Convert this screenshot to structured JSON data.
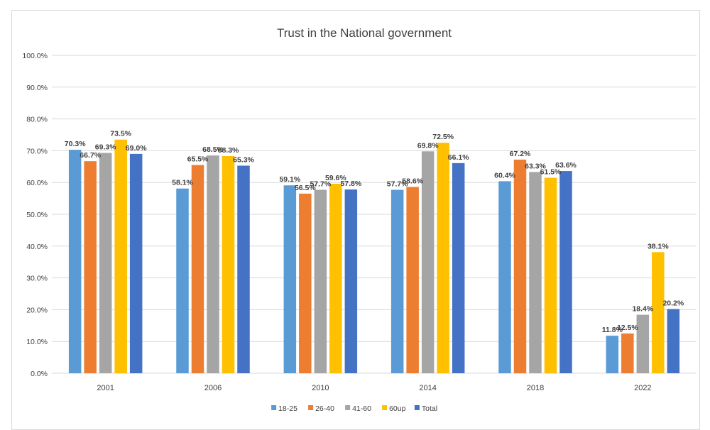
{
  "chart_data": {
    "type": "bar",
    "title": "Trust in the National government",
    "xlabel": "",
    "ylabel": "",
    "ylim": [
      0,
      100
    ],
    "y_ticks": [
      "0.0%",
      "10.0%",
      "20.0%",
      "30.0%",
      "40.0%",
      "50.0%",
      "60.0%",
      "70.0%",
      "80.0%",
      "90.0%",
      "100.0%"
    ],
    "y_tick_values": [
      0,
      10,
      20,
      30,
      40,
      50,
      60,
      70,
      80,
      90,
      100
    ],
    "grid": true,
    "legend_position": "bottom",
    "categories": [
      "2001",
      "2006",
      "2010",
      "2014",
      "2018",
      "2022"
    ],
    "series": [
      {
        "name": "18-25",
        "color": "#5B9BD5",
        "values": [
          70.3,
          58.1,
          59.1,
          57.7,
          60.4,
          11.8
        ],
        "labels": [
          "70.3%",
          "58.1%",
          "59.1%",
          "57.7%",
          "60.4%",
          "11.8%"
        ]
      },
      {
        "name": "26-40",
        "color": "#ED7D31",
        "values": [
          66.7,
          65.5,
          56.5,
          58.6,
          67.2,
          12.5
        ],
        "labels": [
          "66.7%",
          "65.5%",
          "56.5%",
          "58.6%",
          "67.2%",
          "12.5%"
        ]
      },
      {
        "name": "41-60",
        "color": "#A5A5A5",
        "values": [
          69.3,
          68.5,
          57.7,
          69.8,
          63.3,
          18.4
        ],
        "labels": [
          "69.3%",
          "68.5%",
          "57.7%",
          "69.8%",
          "63.3%",
          "18.4%"
        ]
      },
      {
        "name": "60up",
        "color": "#FFC000",
        "values": [
          73.5,
          68.3,
          59.6,
          72.5,
          61.5,
          38.1
        ],
        "labels": [
          "73.5%",
          "68.3%",
          "59.6%",
          "72.5%",
          "61.5%",
          "38.1%"
        ]
      },
      {
        "name": "Total",
        "color": "#4472C4",
        "values": [
          69.0,
          65.3,
          57.8,
          66.1,
          63.6,
          20.2
        ],
        "labels": [
          "69.0%",
          "65.3%",
          "57.8%",
          "66.1%",
          "63.6%",
          "20.2%"
        ]
      }
    ]
  }
}
